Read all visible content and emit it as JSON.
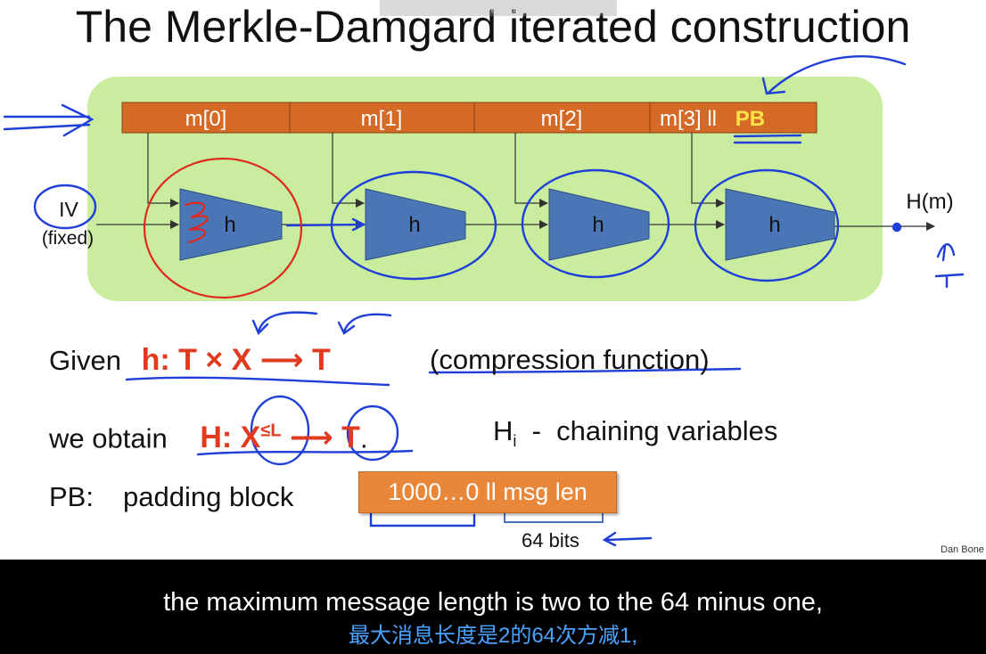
{
  "slide": {
    "title": "The Merkle-Damgard iterated construction",
    "watermark": "GPT中英字幕课程资源@bilibili.com",
    "blocks": [
      "m[0]",
      "m[1]",
      "m[2]",
      "m[3] ll "
    ],
    "pb_label": "PB",
    "h_label": "h",
    "iv_label": "IV",
    "iv_sub": "(fixed)",
    "output_label": "H(m)",
    "given_prefix": "Given",
    "given_formula": "h: T × X ⟶ T",
    "given_note": "(compression function)",
    "obtain_prefix": "we obtain",
    "obtain_formula_h": "H: X",
    "obtain_formula_sup": "≤L",
    "obtain_formula_tail": " ⟶ T",
    "obtain_period": ".",
    "chaining_h": "H",
    "chaining_sub": "i",
    "chaining_text": "  -  chaining variables",
    "pb_prefix": "PB:",
    "pb_desc": "padding block",
    "padding_value": "1000…0  ll  msg len",
    "bits_label": "64 bits",
    "credit": "Dan Bone"
  },
  "subtitles": {
    "english": "the maximum message length is two to the 64 minus one,",
    "chinese": "最大消息长度是2的64次方减1,"
  },
  "colors": {
    "green_panel": "#c9ec9f",
    "block_orange": "#d46a26",
    "h_blue": "#4a76b5",
    "formula_red": "#e23a1e",
    "ink_blue": "#1f3fd8",
    "ink_red": "#e0281e",
    "pb_yellow": "#ffe14a"
  }
}
